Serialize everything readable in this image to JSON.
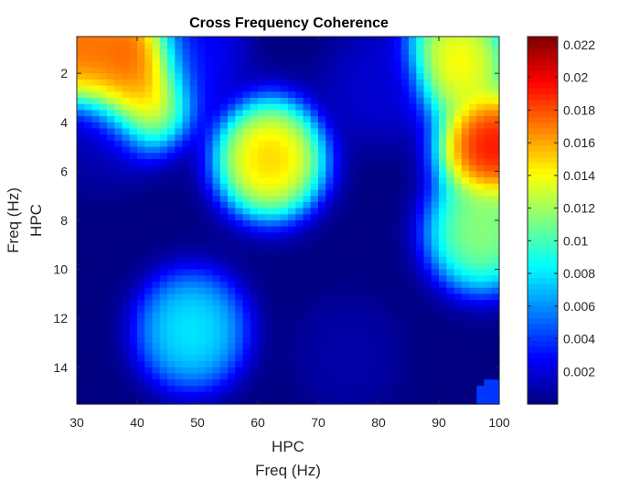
{
  "chart_data": {
    "type": "heatmap",
    "title": "Cross Frequency Coherence",
    "xlabel": [
      "HPC",
      "Freq (Hz)"
    ],
    "ylabel": [
      "Freq (Hz)",
      "HPC"
    ],
    "x_range": [
      30,
      100
    ],
    "y_range": [
      0.5,
      15.5
    ],
    "y_reversed": true,
    "x_ticks": [
      30,
      40,
      50,
      60,
      70,
      80,
      90,
      100
    ],
    "y_ticks": [
      2,
      4,
      6,
      8,
      10,
      12,
      14
    ],
    "colormap": "jet",
    "clim": [
      0,
      0.0225
    ],
    "colorbar_ticks": [
      0.002,
      0.004,
      0.006,
      0.008,
      0.01,
      0.012,
      0.014,
      0.016,
      0.018,
      0.02,
      0.022
    ],
    "colorbar_tick_labels": [
      "0.002",
      "0.004",
      "0.006",
      "0.008",
      "0.01",
      "0.012",
      "0.014",
      "0.016",
      "0.018",
      "0.02",
      "0.022"
    ],
    "x_tick_labels": [
      "30",
      "40",
      "50",
      "60",
      "70",
      "80",
      "90",
      "100"
    ],
    "y_tick_labels": [
      "2",
      "4",
      "6",
      "8",
      "10",
      "12",
      "14"
    ],
    "grid": false,
    "regions": [
      {
        "x": 30,
        "y": 1.0,
        "value": 0.02
      },
      {
        "x": 34,
        "y": 1.5,
        "value": 0.016
      },
      {
        "x": 39,
        "y": 1.5,
        "value": 0.0215
      },
      {
        "x": 40,
        "y": 2.8,
        "value": 0.016
      },
      {
        "x": 49,
        "y": 1.2,
        "value": 0.003
      },
      {
        "x": 62,
        "y": 5.5,
        "value": 0.017
      },
      {
        "x": 99,
        "y": 5.0,
        "value": 0.022
      },
      {
        "x": 93,
        "y": 1.5,
        "value": 0.016
      },
      {
        "x": 97,
        "y": 8.5,
        "value": 0.013
      },
      {
        "x": 80,
        "y": 2.5,
        "value": 0.002
      },
      {
        "x": 75,
        "y": 13.5,
        "value": 0.001
      },
      {
        "x": 33,
        "y": 4.5,
        "value": 0.001
      },
      {
        "x": 49,
        "y": 12.5,
        "value": 0.009
      }
    ]
  }
}
